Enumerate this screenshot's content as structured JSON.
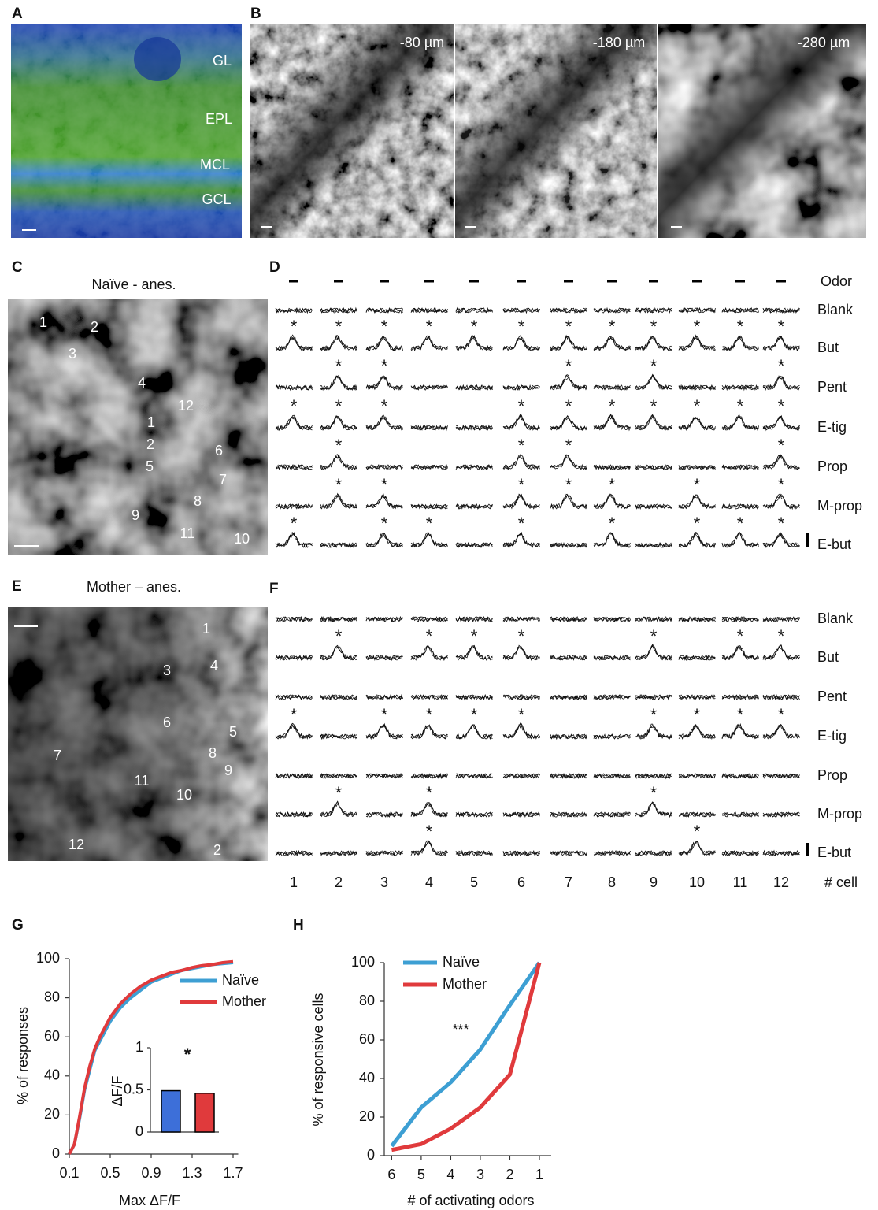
{
  "panels": {
    "a": {
      "label": "A",
      "layers": [
        "GL",
        "EPL",
        "MCL",
        "GCL"
      ]
    },
    "b": {
      "label": "B",
      "depths": [
        "-80 µm",
        "-180 µm",
        "-280 µm"
      ]
    },
    "c": {
      "label": "C",
      "title": "Naïve - anes.",
      "cells": [
        "1",
        "2",
        "3",
        "4",
        "12",
        "1",
        "2",
        "5",
        "6",
        "7",
        "8",
        "9",
        "11",
        "10"
      ]
    },
    "d": {
      "label": "D",
      "odor_label": "Odor",
      "asterisk": "*",
      "odors": [
        "Blank",
        "But",
        "Pent",
        "E-tig",
        "Prop",
        "M-prop",
        "E-but"
      ],
      "responses": [
        [],
        [
          1,
          2,
          3,
          4,
          5,
          6,
          7,
          8,
          9,
          10,
          11,
          12
        ],
        [
          2,
          3,
          7,
          9,
          12
        ],
        [
          1,
          2,
          3,
          6,
          7,
          8,
          9,
          10,
          11,
          12
        ],
        [
          2,
          6,
          7,
          12
        ],
        [
          2,
          3,
          6,
          7,
          8,
          10,
          12
        ],
        [
          1,
          3,
          4,
          6,
          8,
          10,
          11,
          12
        ]
      ]
    },
    "e": {
      "label": "E",
      "title": "Mother – anes.",
      "cells": [
        "1",
        "3",
        "4",
        "6",
        "5",
        "8",
        "9",
        "7",
        "11",
        "10",
        "12",
        "2"
      ]
    },
    "f": {
      "label": "F",
      "asterisk": "*",
      "odors": [
        "Blank",
        "But",
        "Pent",
        "E-tig",
        "Prop",
        "M-prop",
        "E-but"
      ],
      "responses": [
        [],
        [
          2,
          4,
          5,
          6,
          9,
          11,
          12
        ],
        [],
        [
          1,
          3,
          4,
          5,
          6,
          9,
          10,
          11,
          12
        ],
        [],
        [
          2,
          4,
          9
        ],
        [
          4,
          10
        ]
      ],
      "cell_numbers": [
        1,
        2,
        3,
        4,
        5,
        6,
        7,
        8,
        9,
        10,
        11,
        12
      ],
      "cell_axis_label": "# cell"
    }
  },
  "chart_data": [
    {
      "type": "line",
      "label": "G",
      "x_label": "Max ΔF/F",
      "y_label": "% of responses",
      "x": [
        0.1,
        0.15,
        0.2,
        0.25,
        0.3,
        0.35,
        0.4,
        0.5,
        0.6,
        0.7,
        0.8,
        0.9,
        1.0,
        1.1,
        1.2,
        1.3,
        1.4,
        1.5,
        1.6,
        1.7
      ],
      "series": [
        {
          "name": "Naïve",
          "color": "#3d9fd3",
          "values": [
            0,
            5,
            18,
            33,
            43,
            53,
            58,
            68,
            75,
            80,
            84,
            88,
            90,
            92,
            94,
            95,
            96,
            97,
            97.5,
            98
          ]
        },
        {
          "name": "Mother",
          "color": "#e03a3c",
          "values": [
            0,
            5,
            19,
            34,
            45,
            54,
            60,
            70,
            77,
            82,
            86,
            89,
            91,
            93,
            94,
            95.5,
            96.5,
            97,
            98,
            98.5
          ]
        }
      ],
      "xlim": [
        0.1,
        1.75
      ],
      "xticks": [
        0.1,
        0.5,
        0.9,
        1.3,
        1.7
      ],
      "ylim": [
        0,
        100
      ],
      "yticks": [
        0,
        20,
        40,
        60,
        80,
        100
      ],
      "legend": "upper right",
      "inset": {
        "type": "bar",
        "y_label": "ΔF/F",
        "categories": [
          null,
          null
        ],
        "values": [
          0.49,
          0.46
        ],
        "colors": [
          "#3d6fd9",
          "#e03a3c"
        ],
        "ylim": [
          0,
          1
        ],
        "yticks": [
          0,
          0.5,
          1
        ],
        "annotation": "*"
      }
    },
    {
      "type": "line",
      "label": "H",
      "x_label": "#  of activating odors",
      "y_label": "% of responsive cells",
      "x": [
        6,
        5,
        4,
        3,
        2,
        1
      ],
      "series": [
        {
          "name": "Naïve",
          "color": "#3d9fd3",
          "values": [
            5,
            25,
            38,
            55,
            78,
            100
          ]
        },
        {
          "name": "Mother",
          "color": "#e03a3c",
          "values": [
            3,
            6,
            14,
            25,
            42,
            100
          ]
        }
      ],
      "xlim": [
        6.25,
        0.6
      ],
      "xticks": [
        6,
        5,
        4,
        3,
        2,
        1
      ],
      "ylim": [
        0,
        100
      ],
      "yticks": [
        0,
        20,
        40,
        60,
        80,
        100
      ],
      "legend": "upper left",
      "annotation": "***"
    }
  ]
}
